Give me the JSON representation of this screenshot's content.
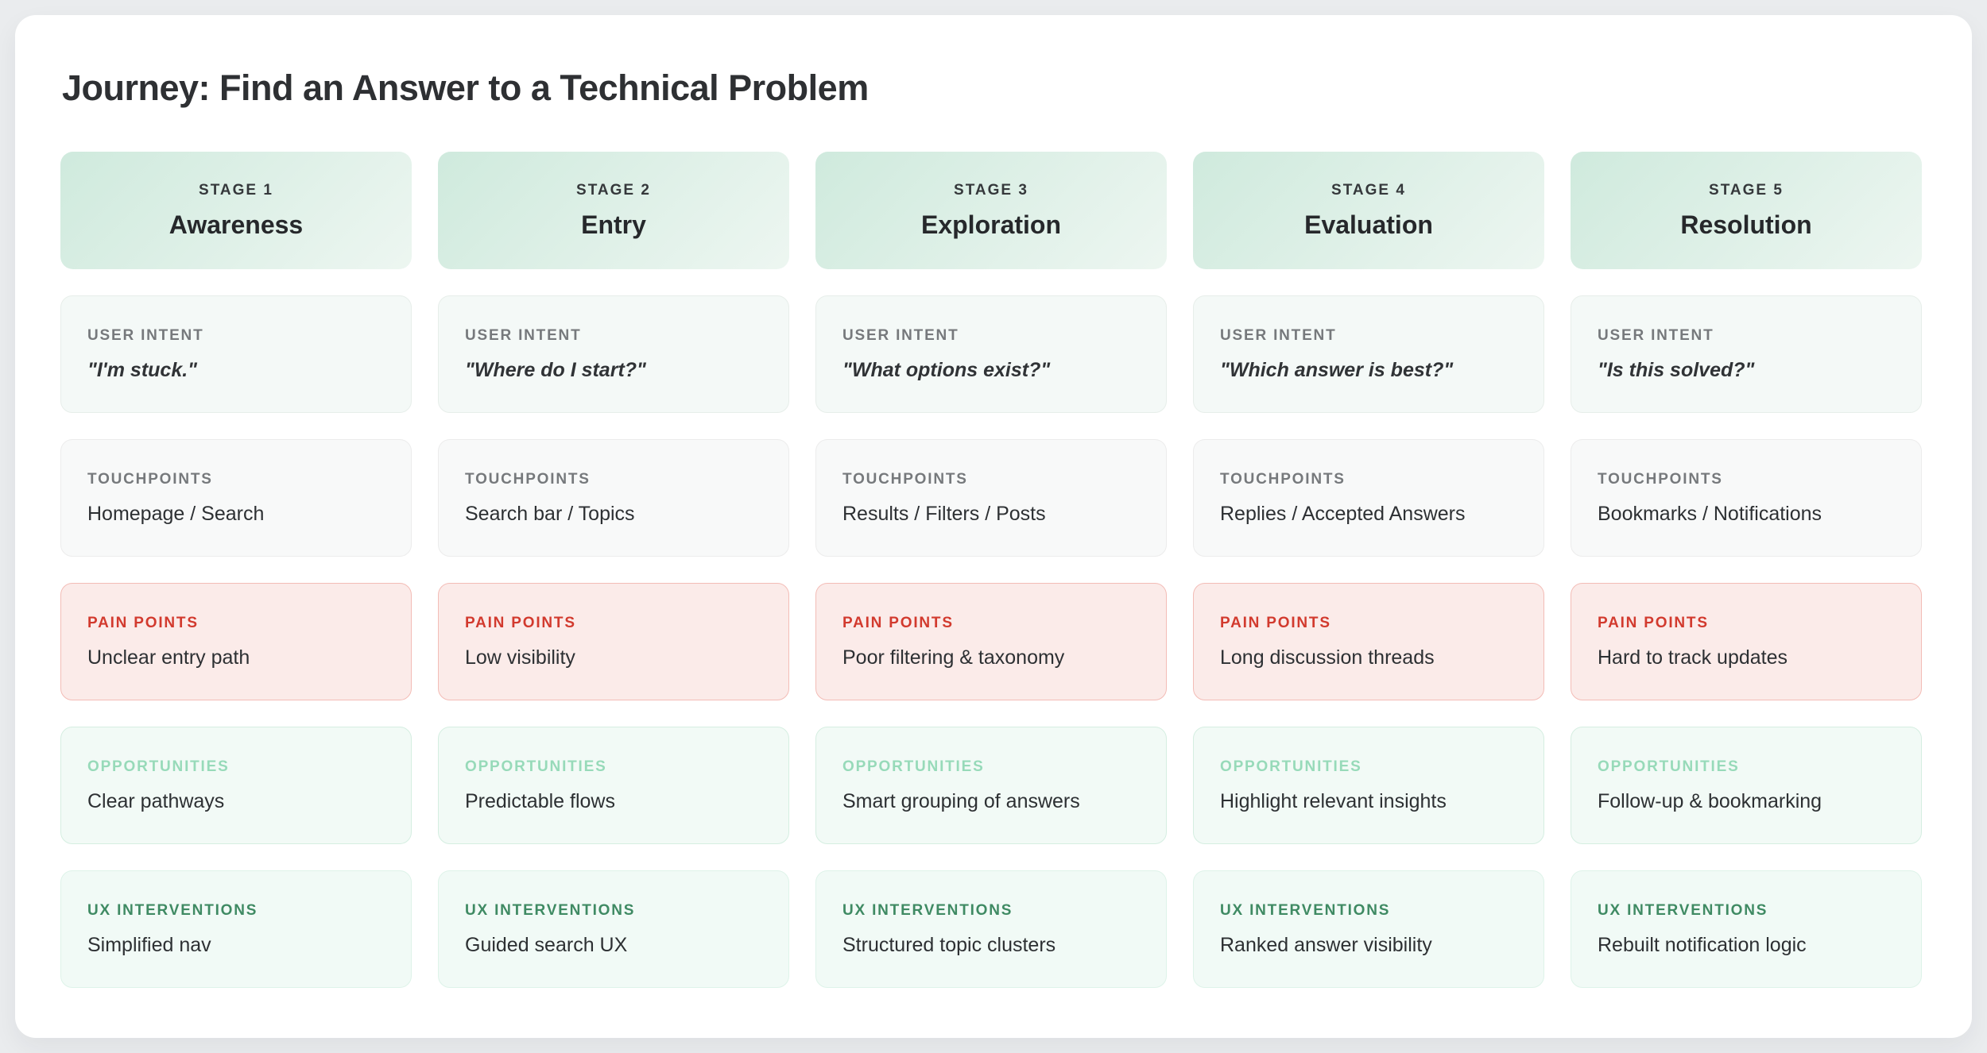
{
  "page": {
    "title": "Journey: Find an Answer to a Technical Problem"
  },
  "section_labels": {
    "user_intent": "USER INTENT",
    "touchpoints": "TOUCHPOINTS",
    "pain_points": "PAIN POINTS",
    "opportunities": "OPPORTUNITIES",
    "ux_interventions": "UX INTERVENTIONS"
  },
  "stages": [
    {
      "stage_label": "STAGE 1",
      "name": "Awareness",
      "user_intent": "\"I'm stuck.\"",
      "touchpoints": "Homepage / Search",
      "pain_points": "Unclear entry path",
      "opportunities": "Clear pathways",
      "ux_interventions": "Simplified nav"
    },
    {
      "stage_label": "STAGE 2",
      "name": "Entry",
      "user_intent": "\"Where do I start?\"",
      "touchpoints": "Search bar / Topics",
      "pain_points": "Low visibility",
      "opportunities": "Predictable flows",
      "ux_interventions": "Guided search UX"
    },
    {
      "stage_label": "STAGE 3",
      "name": "Exploration",
      "user_intent": "\"What options exist?\"",
      "touchpoints": "Results / Filters / Posts",
      "pain_points": "Poor filtering & taxonomy",
      "opportunities": "Smart grouping of answers",
      "ux_interventions": "Structured topic clusters"
    },
    {
      "stage_label": "STAGE 4",
      "name": "Evaluation",
      "user_intent": "\"Which answer is best?\"",
      "touchpoints": "Replies / Accepted Answers",
      "pain_points": "Long discussion threads",
      "opportunities": "Highlight relevant insights",
      "ux_interventions": "Ranked answer visibility"
    },
    {
      "stage_label": "STAGE 5",
      "name": "Resolution",
      "user_intent": "\"Is this solved?\"",
      "touchpoints": "Bookmarks / Notifications",
      "pain_points": "Hard to track updates",
      "opportunities": "Follow-up & bookmarking",
      "ux_interventions": "Rebuilt notification logic"
    }
  ],
  "colors": {
    "page_background": "#eaecee",
    "board_background": "#ffffff",
    "stage_gradient_start": "#cfeadd",
    "stage_gradient_end": "#edf6f1",
    "pain_accent": "#d23a2e",
    "pain_background": "#fbebe9",
    "opportunity_accent": "#97dab9",
    "ux_accent": "#3f8a63",
    "neutral_label": "#76797c",
    "text_primary": "#2d3033"
  }
}
